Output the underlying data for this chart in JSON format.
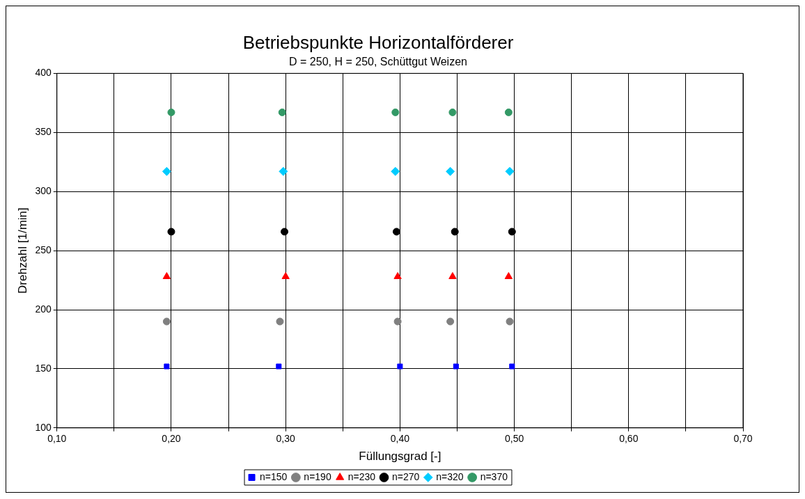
{
  "chart_data": {
    "type": "scatter",
    "title": "Betriebspunkte Horizontalförderer",
    "subtitle": "D = 250, H = 250, Schüttgut Weizen",
    "xlabel": "Füllungsgrad [-]",
    "ylabel": "Drehzahl [1/min]",
    "xlim": [
      0.1,
      0.7
    ],
    "xticks": [
      {
        "value": 0.1,
        "label": "0,10"
      },
      {
        "value": 0.15,
        "label": null
      },
      {
        "value": 0.2,
        "label": "0,20"
      },
      {
        "value": 0.25,
        "label": null
      },
      {
        "value": 0.3,
        "label": "0,30"
      },
      {
        "value": 0.35,
        "label": null
      },
      {
        "value": 0.4,
        "label": "0,40"
      },
      {
        "value": 0.45,
        "label": null
      },
      {
        "value": 0.5,
        "label": "0,50"
      },
      {
        "value": 0.55,
        "label": null
      },
      {
        "value": 0.6,
        "label": "0,60"
      },
      {
        "value": 0.65,
        "label": null
      },
      {
        "value": 0.7,
        "label": "0,70"
      }
    ],
    "ylim": [
      100,
      400
    ],
    "yticks": [
      100,
      150,
      200,
      250,
      300,
      350,
      400
    ],
    "grid": true,
    "legend": "bottom",
    "series": [
      {
        "name": "n=150",
        "color": "#0000ff",
        "marker": "square",
        "x": [
          0.196,
          0.294,
          0.4,
          0.449,
          0.498
        ],
        "values": [
          152,
          152,
          152,
          152,
          152
        ]
      },
      {
        "name": "n=190",
        "color": "#808080",
        "marker": "circle",
        "x": [
          0.196,
          0.295,
          0.398,
          0.444,
          0.496
        ],
        "values": [
          190,
          190,
          190,
          190,
          190
        ]
      },
      {
        "name": "n=230",
        "color": "#ff0000",
        "marker": "triangle",
        "x": [
          0.196,
          0.3,
          0.398,
          0.446,
          0.495
        ],
        "values": [
          228,
          228,
          228,
          228,
          228
        ]
      },
      {
        "name": "n=270",
        "color": "#000000",
        "marker": "circle",
        "x": [
          0.2,
          0.299,
          0.397,
          0.448,
          0.498
        ],
        "values": [
          266,
          266,
          266,
          266,
          266
        ]
      },
      {
        "name": "n=320",
        "color": "#00ccff",
        "marker": "diamond",
        "x": [
          0.196,
          0.298,
          0.396,
          0.444,
          0.496
        ],
        "values": [
          317,
          317,
          317,
          317,
          317
        ]
      },
      {
        "name": "n=370",
        "color": "#339966",
        "marker": "circle",
        "x": [
          0.2,
          0.297,
          0.396,
          0.446,
          0.495
        ],
        "values": [
          367,
          367,
          367,
          367,
          367
        ]
      }
    ]
  }
}
